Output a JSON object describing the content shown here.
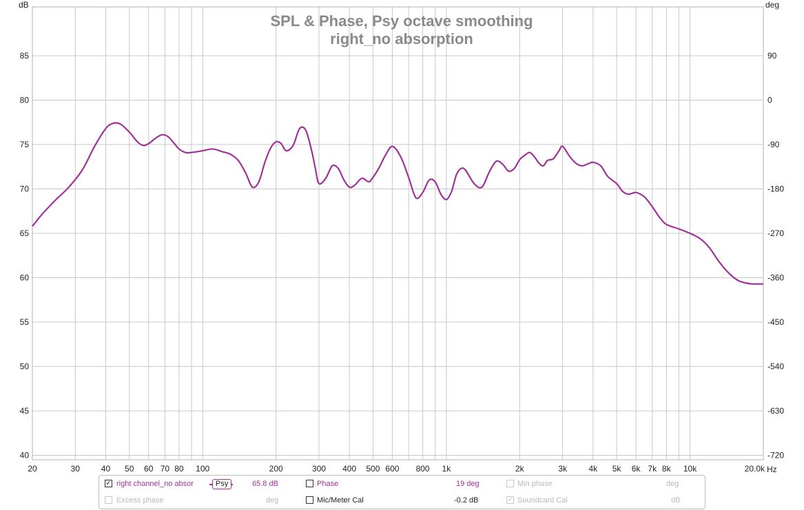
{
  "chart_data": {
    "type": "line",
    "title": "SPL & Phase, Psy octave smoothing",
    "subtitle": "right_no absorption",
    "xlabel": "Hz",
    "ylabel": "dB",
    "y2label": "deg",
    "x_scale": "log",
    "xlim": [
      20,
      20000
    ],
    "ylim": [
      39.5,
      90.5
    ],
    "y2lim": [
      -729,
      189
    ],
    "y_ticks": [
      40,
      45,
      50,
      55,
      60,
      65,
      70,
      75,
      80,
      85
    ],
    "y2_ticks": [
      90,
      0,
      -90,
      -180,
      -270,
      -360,
      -450,
      -540,
      -630,
      -720
    ],
    "x_tick_labels": [
      {
        "v": 20,
        "t": "20"
      },
      {
        "v": 30,
        "t": "30"
      },
      {
        "v": 40,
        "t": "40"
      },
      {
        "v": 50,
        "t": "50"
      },
      {
        "v": 60,
        "t": "60"
      },
      {
        "v": 70,
        "t": "70"
      },
      {
        "v": 80,
        "t": "80"
      },
      {
        "v": 100,
        "t": "100"
      },
      {
        "v": 200,
        "t": "200"
      },
      {
        "v": 300,
        "t": "300"
      },
      {
        "v": 400,
        "t": "400"
      },
      {
        "v": 500,
        "t": "500"
      },
      {
        "v": 600,
        "t": "600"
      },
      {
        "v": 800,
        "t": "800"
      },
      {
        "v": 1000,
        "t": "1k"
      },
      {
        "v": 2000,
        "t": "2k"
      },
      {
        "v": 3000,
        "t": "3k"
      },
      {
        "v": 4000,
        "t": "4k"
      },
      {
        "v": 5000,
        "t": "5k"
      },
      {
        "v": 6000,
        "t": "6k"
      },
      {
        "v": 7000,
        "t": "7k"
      },
      {
        "v": 8000,
        "t": "8k"
      },
      {
        "v": 10000,
        "t": "10k"
      },
      {
        "v": 20000,
        "t": "20.0k"
      }
    ],
    "x_grid": [
      20,
      30,
      40,
      50,
      60,
      70,
      80,
      90,
      100,
      200,
      300,
      400,
      500,
      600,
      700,
      800,
      900,
      1000,
      2000,
      3000,
      4000,
      5000,
      6000,
      7000,
      8000,
      9000,
      10000,
      20000
    ],
    "grid": true,
    "series": [
      {
        "name": "right channel_no absor",
        "color": "#a0309a",
        "x": [
          20,
          22,
          25,
          28,
          32,
          36,
          40,
          43,
          46,
          50,
          54,
          57,
          60,
          64,
          68,
          72,
          76,
          80,
          85,
          90,
          100,
          110,
          120,
          130,
          140,
          150,
          160,
          170,
          180,
          190,
          200,
          210,
          220,
          235,
          250,
          265,
          280,
          290,
          300,
          320,
          340,
          360,
          380,
          400,
          420,
          450,
          480,
          500,
          530,
          560,
          600,
          650,
          700,
          750,
          800,
          850,
          900,
          950,
          1000,
          1050,
          1100,
          1150,
          1200,
          1300,
          1400,
          1500,
          1600,
          1700,
          1800,
          1900,
          2000,
          2100,
          2200,
          2300,
          2400,
          2500,
          2600,
          2750,
          2900,
          3000,
          3200,
          3400,
          3600,
          3800,
          4000,
          4300,
          4600,
          5000,
          5300,
          5600,
          6000,
          6500,
          7000,
          7500,
          8000,
          9000,
          10000,
          11000,
          12000,
          13000,
          14000,
          15000,
          16000,
          17000,
          18000,
          19000,
          20000
        ],
        "values": [
          65.8,
          67.2,
          68.8,
          70.1,
          72.1,
          74.8,
          76.8,
          77.4,
          77.3,
          76.4,
          75.3,
          74.9,
          75.1,
          75.7,
          76.1,
          75.9,
          75.2,
          74.5,
          74.1,
          74.1,
          74.3,
          74.5,
          74.2,
          73.9,
          73.2,
          71.8,
          70.2,
          70.8,
          73.0,
          74.6,
          75.3,
          75.1,
          74.3,
          74.9,
          76.8,
          76.6,
          74.3,
          72.3,
          70.6,
          71.2,
          72.6,
          72.3,
          71.0,
          70.2,
          70.4,
          71.2,
          70.8,
          71.3,
          72.4,
          73.7,
          74.8,
          73.6,
          71.3,
          69.0,
          69.6,
          71.0,
          70.8,
          69.4,
          68.8,
          69.7,
          71.6,
          72.3,
          72.1,
          70.6,
          70.2,
          71.9,
          73.1,
          72.8,
          72.0,
          72.3,
          73.3,
          73.8,
          74.1,
          73.6,
          72.9,
          72.6,
          73.2,
          73.4,
          74.3,
          74.8,
          73.7,
          72.9,
          72.6,
          72.8,
          73.0,
          72.6,
          71.4,
          70.6,
          69.7,
          69.4,
          69.6,
          69.1,
          68.0,
          66.8,
          66.0,
          65.5,
          65.0,
          64.4,
          63.4,
          62.0,
          60.9,
          60.1,
          59.6,
          59.4,
          59.3,
          59.3,
          59.3
        ]
      }
    ]
  },
  "legend": {
    "row1": {
      "series_label": "right channel_no absor",
      "series_checked": "✓",
      "smoothing": "Psy",
      "spl_value": "65.8 dB",
      "phase_label": "Phase",
      "phase_value": "19 deg",
      "min_phase_label": "Min phase",
      "min_phase_unit": "deg"
    },
    "row2": {
      "excess_phase_label": "Excess phase",
      "excess_phase_unit": "deg",
      "mic_cal_label": "Mic/Meter Cal",
      "mic_cal_value": "-0.2 dB",
      "soundcard_cal_label": "Soundcard Cal",
      "soundcard_cal_checked": "✓",
      "soundcard_cal_unit": "dB"
    }
  }
}
